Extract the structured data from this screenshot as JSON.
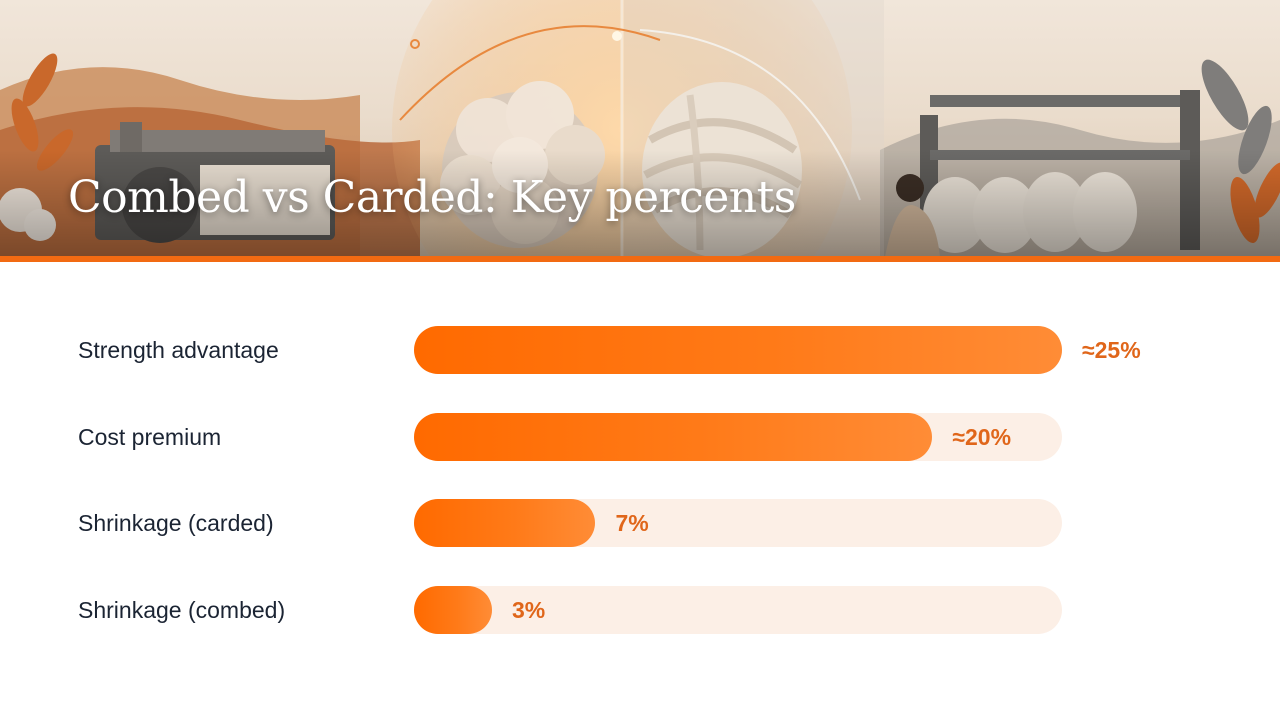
{
  "title": "Combed vs Carded: Key percents",
  "colors": {
    "accent": "#f26a12",
    "bar_fill": "#ff6a00",
    "bar_track": "#fcefe6",
    "label_text": "#1b2433",
    "value_text": "#e0661a"
  },
  "chart_data": {
    "type": "bar",
    "orientation": "horizontal",
    "title": "Combed vs Carded: Key percents",
    "xlabel": "",
    "ylabel": "",
    "xlim": [
      0,
      25
    ],
    "grid": false,
    "categories": [
      "Strength advantage",
      "Cost premium",
      "Shrinkage (carded)",
      "Shrinkage (combed)"
    ],
    "values": [
      25,
      20,
      7,
      3
    ],
    "value_labels": [
      "≈25%",
      "≈20%",
      "7%",
      "3%"
    ]
  }
}
